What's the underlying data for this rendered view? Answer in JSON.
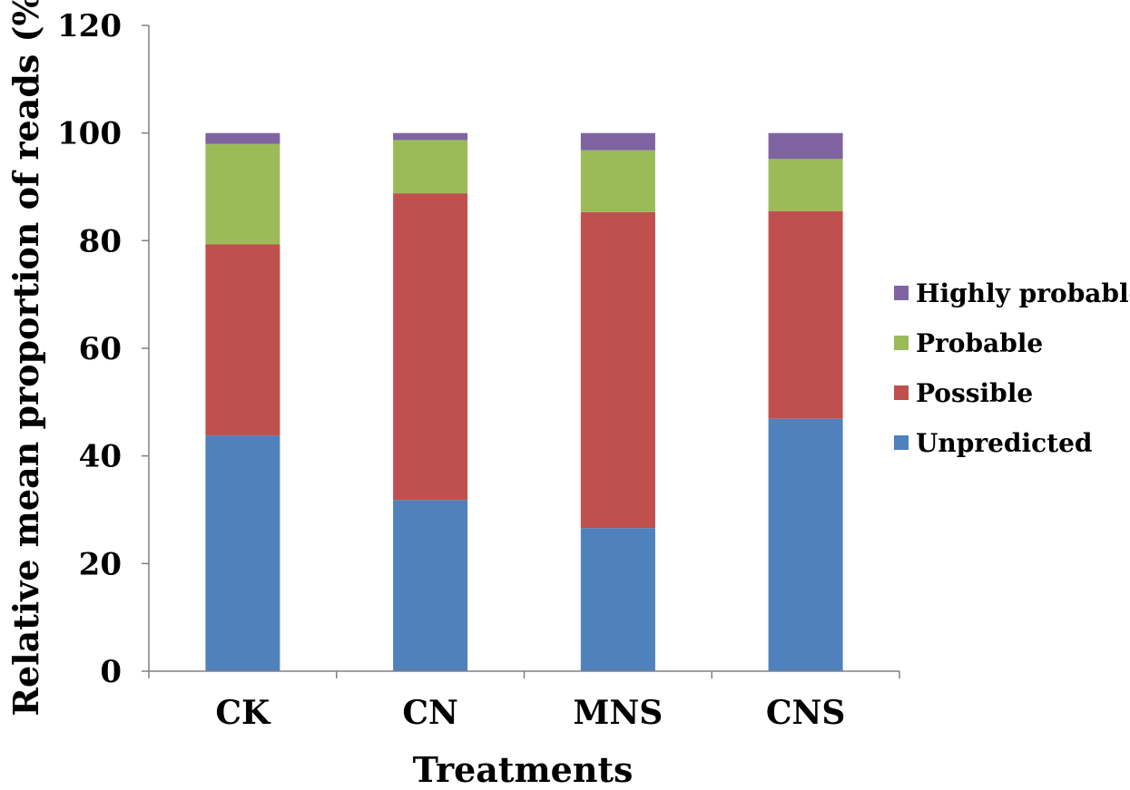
{
  "chart_data": {
    "type": "bar",
    "stacked": true,
    "categories": [
      "CK",
      "CN",
      "MNS",
      "CNS"
    ],
    "series": [
      {
        "name": "Unpredicted",
        "color": "#4f81bd",
        "values": [
          43.8,
          31.8,
          26.6,
          46.9
        ]
      },
      {
        "name": "Possible",
        "color": "#c0504d",
        "values": [
          35.5,
          57.0,
          58.7,
          38.6
        ]
      },
      {
        "name": "Probable",
        "color": "#9bbb59",
        "values": [
          18.7,
          9.9,
          11.5,
          9.7
        ]
      },
      {
        "name": "Highly probable",
        "color": "#8064a2",
        "values": [
          2.0,
          1.3,
          3.2,
          4.8
        ]
      }
    ],
    "xlabel": "Treatments",
    "ylabel": "Relative mean proportion of reads (%)",
    "ylim": [
      0,
      120
    ],
    "yticks": [
      0,
      20,
      40,
      60,
      80,
      100,
      120
    ],
    "legend_position": "right",
    "legend_order": [
      "Highly probable",
      "Probable",
      "Possible",
      "Unpredicted"
    ],
    "grid": false
  }
}
